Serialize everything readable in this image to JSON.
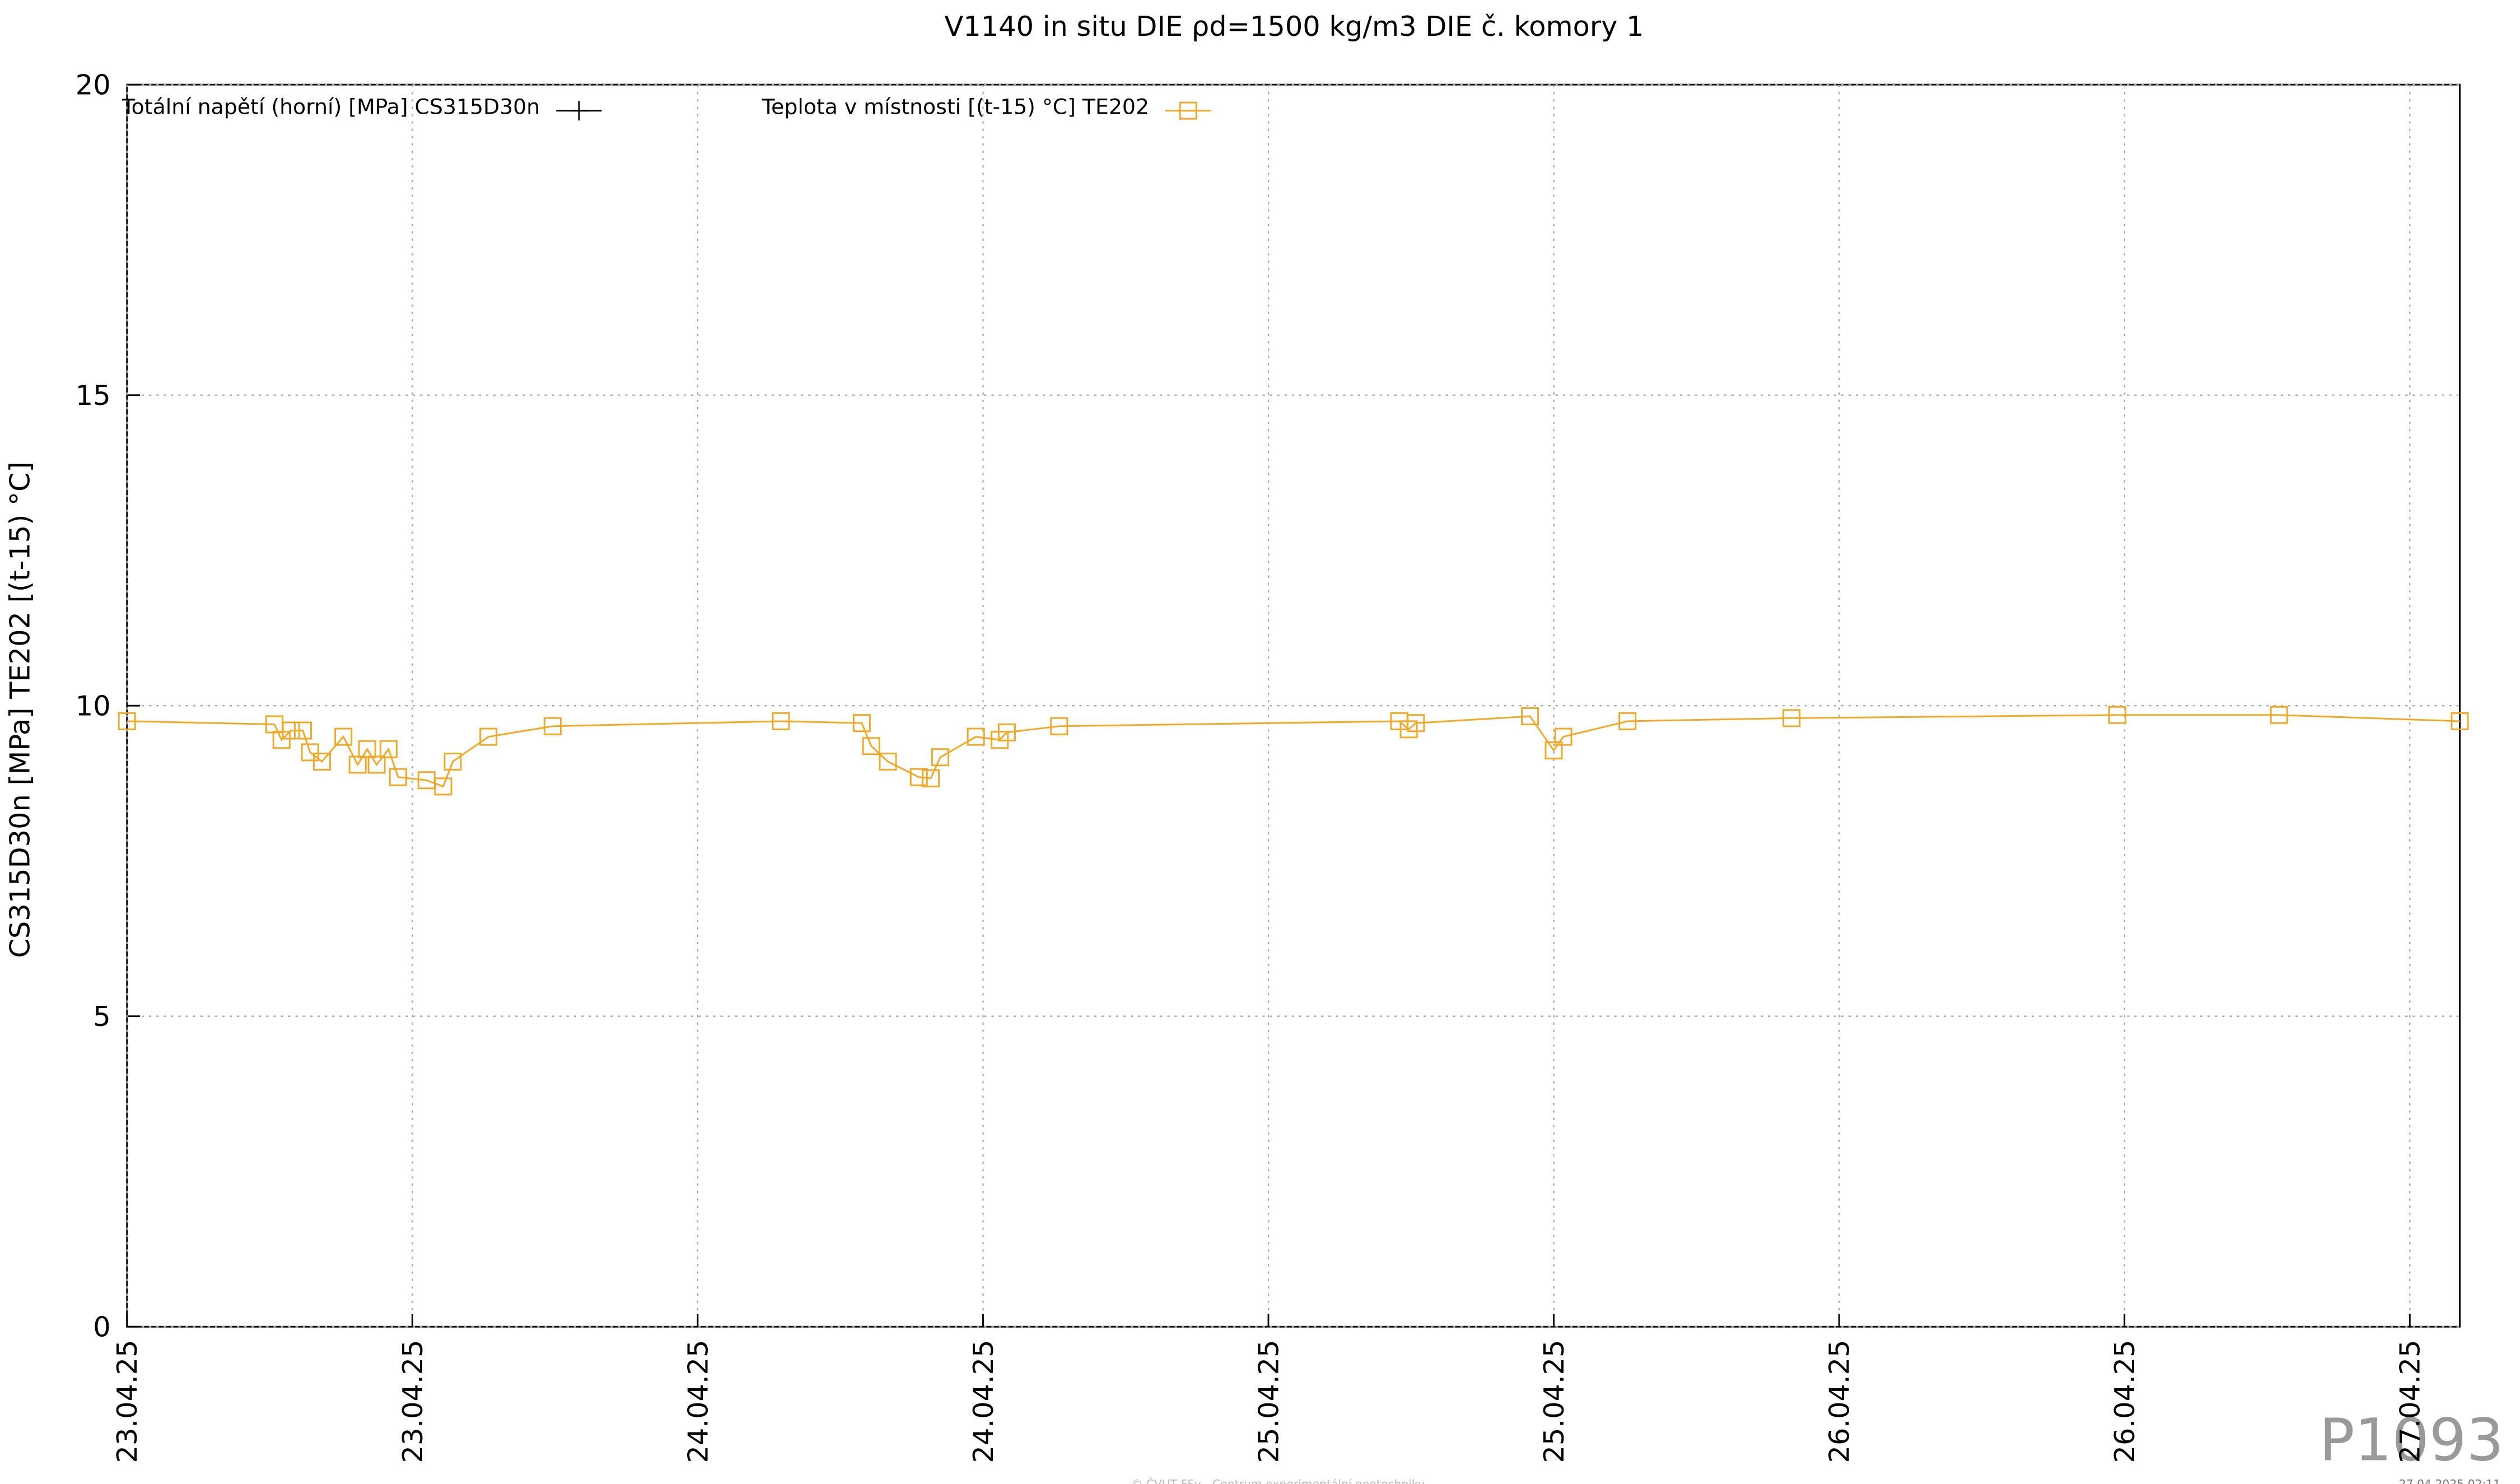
{
  "chart_data": {
    "type": "line",
    "title": "V1140 in situ DIE ρd=1500 kg/m3 DIE č. komory 1",
    "y_label": "CS315D30n [MPa] TE202 [(t-15) °C]",
    "watermark": "P1093",
    "footer": "© ČVUT FSv - Centrum experimentální geotechniky",
    "timestamp": "27.04.2025 02:11",
    "xlim": [
      0,
      98.1
    ],
    "ylim": [
      0,
      20
    ],
    "xticks": [
      {
        "value": 0,
        "label": "23.04.25"
      },
      {
        "value": 12,
        "label": "23.04.25"
      },
      {
        "value": 24,
        "label": "24.04.25"
      },
      {
        "value": 36,
        "label": "24.04.25"
      },
      {
        "value": 48,
        "label": "25.04.25"
      },
      {
        "value": 60,
        "label": "25.04.25"
      },
      {
        "value": 72,
        "label": "26.04.25"
      },
      {
        "value": 84,
        "label": "26.04.25"
      },
      {
        "value": 96,
        "label": "27.04.25"
      }
    ],
    "yticks": [
      0,
      5,
      10,
      15,
      20
    ],
    "grid": true,
    "legend": "top",
    "x": [
      0,
      6.2,
      6.5,
      6.9,
      7.4,
      7.7,
      8.2,
      9.1,
      9.7,
      10.1,
      10.5,
      11.0,
      11.4,
      12.6,
      13.3,
      13.7,
      15.2,
      17.9,
      27.5,
      30.9,
      31.3,
      32.0,
      33.3,
      33.8,
      34.2,
      35.7,
      36.7,
      37.0,
      39.2,
      53.5,
      53.9,
      54.2,
      59.0,
      60.0,
      60.4,
      63.1,
      70.0,
      83.7,
      90.5,
      98.1
    ],
    "series": [
      {
        "name": "Totální napětí (horní) [MPa] CS315D30n",
        "color": "#000000",
        "marker": "plus"
      },
      {
        "name": "Teplota v místnosti [(t-15) °C] TE202",
        "color": "#f5a623",
        "marker": "square",
        "values": [
          9.75,
          9.7,
          9.45,
          9.6,
          9.6,
          9.25,
          9.1,
          9.5,
          9.05,
          9.3,
          9.05,
          9.3,
          8.85,
          8.8,
          8.7,
          9.1,
          9.5,
          9.67,
          9.75,
          9.72,
          9.35,
          9.1,
          8.85,
          8.83,
          9.17,
          9.5,
          9.45,
          9.57,
          9.67,
          9.75,
          9.62,
          9.72,
          9.83,
          9.28,
          9.5,
          9.75,
          9.8,
          9.85,
          9.85,
          9.75
        ]
      }
    ]
  }
}
